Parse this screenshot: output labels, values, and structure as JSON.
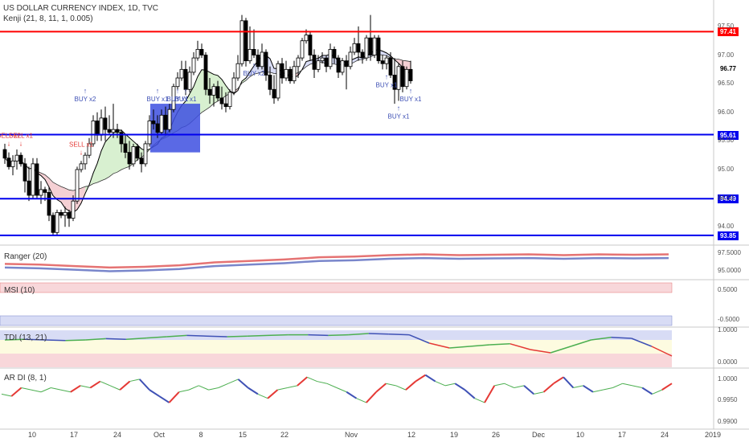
{
  "header": {
    "symbol_line": "US DOLLAR CURRENCY INDEX, 1D, TVC",
    "indicator_line": "Kenji (21, 8, 11, 1, 0.005)"
  },
  "colors": {
    "bull_candle": "#ffffff",
    "bear_candle": "#000000",
    "hline_red": "#ff0000",
    "hline_blue": "#0000ee",
    "signal_red": "#e53935",
    "signal_blue": "#3f51b5",
    "cloud_green": "#d8f0d0",
    "cloud_pink": "#f5d0d4",
    "cloud_blue": "#d8dcf5",
    "box": "#3d4fe0"
  },
  "chart_data": [
    {
      "type": "candlestick",
      "title": "US DOLLAR CURRENCY INDEX, 1D, TVC",
      "ylim": [
        93.75,
        97.85
      ],
      "x_ticks": [
        "10",
        "17",
        "24",
        "Oct",
        "8",
        "15",
        "22",
        "Nov",
        "12",
        "19",
        "26",
        "Dec",
        "10",
        "17",
        "24",
        "2019"
      ],
      "y_ticks": [
        "97.50",
        "97.00",
        "96.50",
        "96.00",
        "95.50",
        "95.00",
        "94.50",
        "94.00"
      ],
      "current_price": "96.77",
      "horizontal_lines": [
        {
          "price": 97.41,
          "label": "97.41",
          "color": "red"
        },
        {
          "price": 95.61,
          "label": "95.61",
          "color": "blue"
        },
        {
          "price": 94.49,
          "label": "94.49",
          "color": "blue"
        },
        {
          "price": 93.85,
          "label": "93.85",
          "color": "blue"
        }
      ],
      "candles": [
        [
          95.35,
          95.45,
          95.1,
          95.2
        ],
        [
          95.2,
          95.3,
          95.0,
          95.05
        ],
        [
          95.05,
          95.25,
          94.9,
          95.15
        ],
        [
          95.15,
          95.35,
          95.0,
          95.25
        ],
        [
          95.25,
          95.3,
          95.05,
          95.1
        ],
        [
          95.1,
          95.2,
          94.6,
          94.8
        ],
        [
          94.8,
          95.05,
          94.45,
          94.55
        ],
        [
          94.55,
          95.2,
          94.5,
          95.1
        ],
        [
          95.1,
          95.2,
          94.5,
          94.55
        ],
        [
          94.55,
          94.8,
          94.4,
          94.65
        ],
        [
          94.65,
          94.7,
          94.45,
          94.6
        ],
        [
          94.6,
          94.7,
          94.1,
          94.2
        ],
        [
          94.2,
          94.25,
          93.85,
          93.9
        ],
        [
          93.9,
          94.3,
          93.85,
          94.25
        ],
        [
          94.25,
          94.3,
          94.15,
          94.2
        ],
        [
          94.2,
          94.35,
          94.0,
          94.25
        ],
        [
          94.25,
          94.3,
          94.0,
          94.15
        ],
        [
          94.15,
          94.55,
          94.1,
          94.45
        ],
        [
          94.45,
          95.05,
          94.4,
          95.0
        ],
        [
          95.0,
          95.15,
          94.95,
          95.1
        ],
        [
          95.1,
          95.3,
          95.0,
          95.25
        ],
        [
          95.25,
          95.55,
          95.2,
          95.45
        ],
        [
          95.45,
          95.95,
          95.4,
          95.85
        ],
        [
          95.85,
          96.0,
          95.5,
          95.6
        ],
        [
          95.6,
          96.05,
          95.5,
          95.9
        ],
        [
          95.9,
          96.1,
          95.5,
          95.7
        ],
        [
          95.7,
          95.95,
          95.6,
          95.65
        ],
        [
          95.65,
          96.15,
          95.55,
          95.7
        ],
        [
          95.7,
          95.8,
          95.55,
          95.65
        ],
        [
          95.65,
          95.7,
          95.3,
          95.45
        ],
        [
          95.45,
          95.6,
          95.2,
          95.3
        ],
        [
          95.3,
          95.5,
          95.0,
          95.1
        ],
        [
          95.1,
          95.45,
          95.05,
          95.4
        ],
        [
          95.4,
          95.45,
          95.15,
          95.2
        ],
        [
          95.2,
          95.3,
          94.95,
          95.1
        ],
        [
          95.1,
          95.5,
          95.05,
          95.45
        ],
        [
          95.45,
          95.95,
          95.4,
          95.85
        ],
        [
          95.85,
          96.05,
          95.7,
          95.8
        ],
        [
          95.8,
          95.95,
          95.55,
          95.65
        ],
        [
          95.65,
          96.05,
          95.6,
          95.95
        ],
        [
          95.95,
          96.1,
          95.6,
          95.7
        ],
        [
          95.7,
          96.15,
          95.65,
          96.05
        ],
        [
          96.05,
          96.5,
          96.0,
          96.45
        ],
        [
          96.45,
          96.7,
          96.4,
          96.6
        ],
        [
          96.6,
          96.9,
          96.55,
          96.75
        ],
        [
          96.75,
          96.9,
          96.3,
          96.4
        ],
        [
          96.4,
          96.8,
          96.35,
          96.7
        ],
        [
          96.7,
          97.05,
          96.65,
          96.95
        ],
        [
          96.95,
          97.25,
          96.9,
          97.1
        ],
        [
          97.1,
          97.2,
          96.95,
          97.0
        ],
        [
          97.0,
          97.05,
          96.3,
          96.4
        ],
        [
          96.4,
          96.6,
          96.15,
          96.3
        ],
        [
          96.3,
          96.5,
          96.1,
          96.45
        ],
        [
          96.45,
          96.55,
          96.2,
          96.25
        ],
        [
          96.25,
          96.45,
          96.05,
          96.15
        ],
        [
          96.15,
          96.35,
          96.0,
          96.1
        ],
        [
          96.1,
          96.4,
          96.05,
          96.35
        ],
        [
          96.35,
          96.7,
          96.3,
          96.6
        ],
        [
          96.6,
          97.0,
          96.55,
          96.85
        ],
        [
          96.85,
          97.7,
          96.8,
          97.6
        ],
        [
          97.6,
          97.65,
          96.8,
          96.9
        ],
        [
          96.9,
          97.5,
          96.85,
          97.1
        ],
        [
          97.1,
          97.45,
          96.95,
          97.0
        ],
        [
          97.0,
          97.1,
          96.75,
          96.8
        ],
        [
          96.8,
          97.2,
          96.75,
          97.05
        ],
        [
          97.05,
          97.1,
          96.55,
          96.65
        ],
        [
          96.65,
          96.8,
          96.3,
          96.4
        ],
        [
          96.4,
          96.65,
          96.15,
          96.25
        ],
        [
          96.25,
          96.9,
          96.2,
          96.85
        ],
        [
          96.85,
          96.95,
          96.5,
          96.6
        ],
        [
          96.6,
          96.9,
          96.55,
          96.75
        ],
        [
          96.75,
          96.8,
          96.5,
          96.55
        ],
        [
          96.55,
          96.9,
          96.5,
          96.8
        ],
        [
          96.8,
          97.0,
          96.6,
          96.95
        ],
        [
          96.95,
          97.3,
          96.9,
          97.25
        ],
        [
          97.25,
          97.45,
          97.2,
          97.35
        ],
        [
          97.35,
          97.4,
          96.9,
          97.0
        ],
        [
          97.0,
          97.1,
          96.6,
          96.75
        ],
        [
          96.75,
          97.0,
          96.7,
          96.9
        ],
        [
          96.9,
          97.05,
          96.85,
          96.95
        ],
        [
          96.95,
          97.0,
          96.7,
          96.8
        ],
        [
          96.8,
          97.2,
          96.75,
          97.1
        ],
        [
          97.1,
          97.15,
          96.85,
          96.95
        ],
        [
          96.95,
          97.0,
          96.6,
          96.7
        ],
        [
          96.7,
          96.95,
          96.65,
          96.9
        ],
        [
          96.9,
          97.0,
          96.4,
          96.8
        ],
        [
          96.8,
          97.15,
          96.75,
          97.05
        ],
        [
          97.05,
          97.3,
          97.0,
          97.2
        ],
        [
          97.2,
          97.5,
          96.9,
          97.05
        ],
        [
          97.05,
          97.1,
          96.85,
          96.95
        ],
        [
          96.95,
          97.35,
          96.9,
          97.3
        ],
        [
          97.3,
          97.7,
          96.9,
          97.0
        ],
        [
          97.0,
          97.35,
          96.95,
          97.3
        ],
        [
          97.3,
          97.35,
          96.85,
          96.9
        ],
        [
          96.9,
          97.0,
          96.75,
          96.85
        ],
        [
          96.85,
          97.0,
          96.75,
          96.95
        ],
        [
          96.95,
          97.05,
          96.6,
          96.65
        ],
        [
          96.65,
          96.95,
          96.15,
          96.4
        ],
        [
          96.4,
          96.85,
          96.2,
          96.8
        ],
        [
          96.8,
          96.9,
          96.35,
          96.45
        ],
        [
          96.45,
          96.8,
          96.4,
          96.75
        ],
        [
          96.75,
          96.9,
          96.5,
          96.55
        ]
      ],
      "signals": [
        {
          "label": "SELL x2",
          "bar": 1,
          "side": "sell"
        },
        {
          "label": "SELL x1",
          "bar": 4,
          "side": "sell"
        },
        {
          "label": "SELL x1",
          "bar": 19,
          "side": "sell"
        },
        {
          "label": "BUY x2",
          "bar": 62,
          "side": "buy"
        },
        {
          "label": "BUY x1",
          "bar": 95,
          "side": "buy"
        },
        {
          "label": "BUY x1",
          "bar": 98,
          "side": "buy"
        },
        {
          "label": "BUY x1",
          "bar": 101,
          "side": "buy"
        },
        {
          "label": "BUY x2",
          "bar": 122,
          "side": "buy"
        },
        {
          "label": "BUY x1",
          "bar": 140,
          "side": "buy"
        },
        {
          "label": "BUY x1",
          "bar": 147,
          "side": "buy"
        },
        {
          "label": "BUY x1",
          "bar": 145,
          "side": "buy"
        }
      ]
    },
    {
      "type": "line",
      "title": "Ranger (20)",
      "y_ticks": [
        "97.5000",
        "95.0000"
      ],
      "series": [
        {
          "name": "upper",
          "values": [
            96.0,
            95.9,
            95.7,
            95.5,
            95.6,
            95.8,
            96.2,
            96.4,
            96.6,
            96.9,
            97.0,
            97.2,
            97.3,
            97.2,
            97.25,
            97.3,
            97.2,
            97.3,
            97.25,
            97.3
          ]
        },
        {
          "name": "lower",
          "values": [
            95.5,
            95.4,
            95.2,
            95.0,
            95.1,
            95.3,
            95.7,
            95.9,
            96.1,
            96.4,
            96.5,
            96.7,
            96.8,
            96.7,
            96.75,
            96.8,
            96.7,
            96.8,
            96.75,
            96.8
          ]
        }
      ]
    },
    {
      "type": "line",
      "title": "MSI (10)",
      "y_ticks": [
        "0.5000",
        "-0.5000"
      ]
    },
    {
      "type": "line",
      "title": "TDI (13, 21)",
      "y_ticks": [
        "1.0000",
        "0.0000"
      ],
      "values": [
        0.7,
        0.72,
        0.7,
        0.68,
        0.7,
        0.74,
        0.72,
        0.76,
        0.8,
        0.84,
        0.82,
        0.8,
        0.82,
        0.84,
        0.86,
        0.86,
        0.84,
        0.86,
        0.9,
        0.88,
        0.86,
        0.6,
        0.45,
        0.5,
        0.55,
        0.58,
        0.4,
        0.3,
        0.5,
        0.7,
        0.78,
        0.75,
        0.5,
        0.2
      ]
    },
    {
      "type": "line",
      "title": "AR DI (8, 1)",
      "y_ticks": [
        "1.0000",
        "0.9950",
        "0.9900"
      ],
      "values": [
        0.9965,
        0.996,
        0.998,
        0.9975,
        0.997,
        0.998,
        0.9975,
        0.997,
        0.9985,
        0.998,
        0.9995,
        0.9985,
        0.9975,
        0.9995,
        1.0,
        0.9975,
        0.996,
        0.9945,
        0.997,
        0.9975,
        0.9985,
        0.9975,
        0.998,
        0.999,
        1.0,
        0.998,
        0.9965,
        0.9955,
        0.9975,
        0.998,
        0.9985,
        1.0005,
        0.9995,
        0.999,
        0.998,
        0.997,
        0.9955,
        0.9945,
        0.997,
        0.999,
        0.9985,
        0.9975,
        0.9995,
        1.001,
        0.9995,
        0.9985,
        0.999,
        0.9975,
        0.9955,
        0.9945,
        0.9985,
        0.999,
        0.998,
        0.9985,
        0.9965,
        0.997,
        0.999,
        1.0005,
        0.998,
        0.9985,
        0.997,
        0.9975,
        0.998,
        0.999,
        0.9985,
        0.998,
        0.9965,
        0.9975,
        0.999
      ]
    }
  ],
  "panels": {
    "ranger_label": "Ranger (20)",
    "msi_label": "MSI (10)",
    "tdi_label": "TDI (13, 21)",
    "ardi_label": "AR DI (8, 1)"
  }
}
